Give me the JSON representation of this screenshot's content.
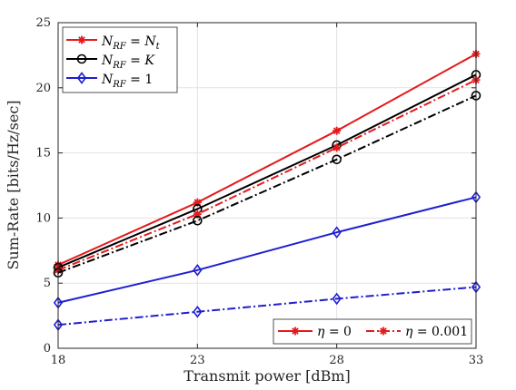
{
  "chart_data": {
    "type": "line",
    "xlabel": "Transmit power [dBm]",
    "ylabel": "Sum-Rate [bits/Hz/sec]",
    "x": [
      18,
      23,
      28,
      33
    ],
    "xlim": [
      18,
      33
    ],
    "ylim": [
      0,
      25
    ],
    "xticks": [
      "18",
      "23",
      "28",
      "33"
    ],
    "yticks": [
      "0",
      "5",
      "10",
      "15",
      "20",
      "25"
    ],
    "grid": true,
    "legend_top_left": [
      {
        "label": "N_RF = N_t",
        "color": "#e41a1c",
        "marker": "star"
      },
      {
        "label": "N_RF = K",
        "color": "#000000",
        "marker": "circle"
      },
      {
        "label": "N_RF = 1",
        "color": "#1f1fd1",
        "marker": "diamond"
      }
    ],
    "legend_bottom_right": [
      {
        "label": "η = 0",
        "style": "solid"
      },
      {
        "label": "η = 0.001",
        "style": "dashdot"
      }
    ],
    "series": [
      {
        "color": "#e41a1c",
        "marker": "star",
        "style": "solid",
        "values": [
          6.4,
          11.2,
          16.7,
          22.6
        ]
      },
      {
        "color": "#000000",
        "marker": "circle",
        "style": "solid",
        "values": [
          6.2,
          10.7,
          15.6,
          21.0
        ]
      },
      {
        "color": "#1f1fd1",
        "marker": "diamond",
        "style": "solid",
        "values": [
          3.5,
          6.0,
          8.9,
          11.6
        ]
      },
      {
        "color": "#e41a1c",
        "marker": "star",
        "style": "dashdot",
        "values": [
          6.0,
          10.3,
          15.4,
          20.6
        ]
      },
      {
        "color": "#000000",
        "marker": "circle",
        "style": "dashdot",
        "values": [
          5.8,
          9.8,
          14.5,
          19.4
        ]
      },
      {
        "color": "#1f1fd1",
        "marker": "diamond",
        "style": "dashdot",
        "values": [
          1.8,
          2.8,
          3.8,
          4.7
        ]
      }
    ]
  }
}
